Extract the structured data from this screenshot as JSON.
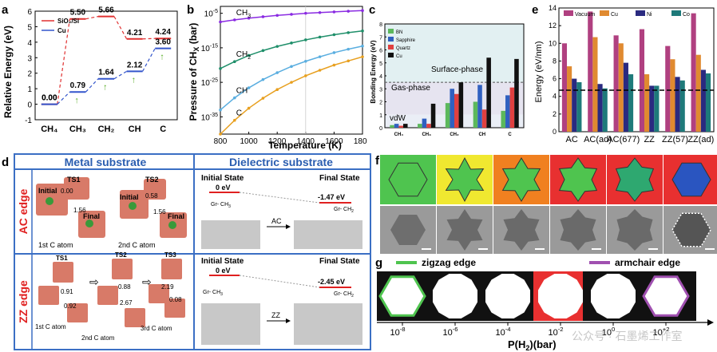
{
  "panel_labels": {
    "a": "a",
    "b": "b",
    "c": "c",
    "d": "d",
    "e": "e",
    "f": "f",
    "g": "g"
  },
  "chart_data": [
    {
      "id": "a",
      "type": "line",
      "title": "",
      "ylabel": "Relative Energy (eV)",
      "ylim": [
        -1,
        6
      ],
      "yticks": [
        "-1",
        "0",
        "1",
        "2",
        "3",
        "4",
        "5",
        "6"
      ],
      "categories": [
        "CH4",
        "CH3",
        "CH2",
        "CH",
        "C"
      ],
      "category_labels": [
        "CH₄",
        "CH₃",
        "CH₂",
        "CH",
        "C"
      ],
      "series": [
        {
          "name": "SiO2/Si",
          "legend": "SiO₂/Si",
          "color": "#e03030",
          "values": [
            0.0,
            5.5,
            5.66,
            4.21,
            4.24
          ],
          "labels": [
            "0.00",
            "5.50",
            "5.66",
            "4.21",
            "4.24"
          ]
        },
        {
          "name": "Cu",
          "legend": "Cu",
          "color": "#3355cc",
          "values": [
            0.0,
            0.79,
            1.64,
            2.12,
            3.6
          ],
          "labels": [
            "0.00",
            "0.79",
            "1.64",
            "2.12",
            "3.60"
          ]
        }
      ]
    },
    {
      "id": "b",
      "type": "line",
      "xlabel": "Temperature (K)",
      "ylabel": "Pressure of CH",
      "ylabel_sub": "X",
      "ylabel_tail": " (bar)",
      "xlim": [
        800,
        1800
      ],
      "xticks": [
        "800",
        "1000",
        "1200",
        "1400",
        "1600",
        "1800"
      ],
      "ytick_base": "10",
      "ytick_exps": [
        "-5",
        "-15",
        "-25",
        "-35"
      ],
      "ylim_log": [
        -40,
        -3
      ],
      "series": [
        {
          "name": "CH3",
          "label": "CH",
          "label_sub": "3",
          "color": "#8a2be2",
          "x": [
            800,
            900,
            1000,
            1100,
            1200,
            1300,
            1400,
            1500,
            1600,
            1700,
            1800
          ],
          "log_values": [
            -7.5,
            -6.9,
            -6.4,
            -6.0,
            -5.6,
            -5.3,
            -5.0,
            -4.8,
            -4.6,
            -4.4,
            -4.2
          ]
        },
        {
          "name": "CH2",
          "label": "CH",
          "label_sub": "2",
          "color": "#1f8f6a",
          "x": [
            800,
            900,
            1000,
            1100,
            1200,
            1300,
            1400,
            1500,
            1600,
            1700,
            1800
          ],
          "log_values": [
            -21,
            -19,
            -17.2,
            -15.8,
            -14.6,
            -13.6,
            -12.7,
            -11.9,
            -11.2,
            -10.6,
            -10.1
          ]
        },
        {
          "name": "CH",
          "label": "CH",
          "label_sub": "",
          "color": "#5aaee0",
          "x": [
            800,
            900,
            1000,
            1100,
            1200,
            1300,
            1400,
            1500,
            1600,
            1700,
            1800
          ],
          "log_values": [
            -33,
            -29.5,
            -26.6,
            -24.2,
            -22.2,
            -20.4,
            -18.9,
            -17.6,
            -16.4,
            -15.4,
            -14.5
          ]
        },
        {
          "name": "C",
          "label": "C",
          "label_sub": "",
          "color": "#e8a020",
          "x": [
            800,
            900,
            1000,
            1100,
            1200,
            1300,
            1400,
            1500,
            1600,
            1700,
            1800
          ],
          "log_values": [
            -40,
            -36,
            -32.5,
            -29.6,
            -27.1,
            -25,
            -23.1,
            -21.5,
            -20,
            -18.8,
            -17.6
          ]
        }
      ]
    },
    {
      "id": "c",
      "type": "bar",
      "ylabel": "Bonding Energy (eV)",
      "ylim": [
        0,
        8
      ],
      "yticks": [
        "0",
        "1",
        "2",
        "3",
        "4",
        "5",
        "6",
        "7",
        "8"
      ],
      "categories": [
        "CH4",
        "CH3",
        "CH2",
        "CH",
        "C"
      ],
      "category_labels": [
        "CH₄",
        "CH₃",
        "CH₂",
        "CH",
        "C"
      ],
      "region_labels": [
        "Surface-phase",
        "Gas-phase",
        "vdW"
      ],
      "thresholds": [
        3.5,
        1.0
      ],
      "series": [
        {
          "name": "BN",
          "color": "#5cb85c",
          "values": [
            0.2,
            0.3,
            1.9,
            2.0,
            1.3
          ]
        },
        {
          "name": "Sapphire",
          "color": "#3060c0",
          "values": [
            0.3,
            0.7,
            3.0,
            3.3,
            2.5
          ]
        },
        {
          "name": "Quartz",
          "color": "#e04040",
          "values": [
            0.15,
            0.3,
            2.6,
            1.4,
            3.1
          ]
        },
        {
          "name": "Cu",
          "color": "#111111",
          "values": [
            0.3,
            1.85,
            3.5,
            5.4,
            5.3
          ]
        }
      ]
    },
    {
      "id": "e",
      "type": "bar",
      "ylabel": "Energy (eV/nm)",
      "ylim": [
        0,
        14
      ],
      "yticks": [
        "0",
        "2",
        "4",
        "6",
        "8",
        "10",
        "12",
        "14"
      ],
      "categories": [
        "AC",
        "AC(ad)",
        "AC(677)",
        "ZZ",
        "ZZ(57)",
        "ZZ(ad)"
      ],
      "reference_line": 4.7,
      "series": [
        {
          "name": "Vacuum",
          "color": "#b04080",
          "values": [
            10.0,
            13.6,
            10.9,
            11.6,
            9.7,
            13.4
          ]
        },
        {
          "name": "Cu",
          "color": "#e08a30",
          "values": [
            7.4,
            10.7,
            10.0,
            6.5,
            8.2,
            8.7
          ]
        },
        {
          "name": "Ni",
          "color": "#2a2a80",
          "values": [
            6.0,
            5.4,
            7.8,
            5.2,
            6.2,
            7.0
          ]
        },
        {
          "name": "Co",
          "color": "#1e7a7a",
          "values": [
            5.6,
            4.9,
            6.5,
            5.2,
            5.8,
            6.6
          ]
        }
      ]
    }
  ],
  "panel_d": {
    "metal_header": "Metal substrate",
    "dielectric_header": "Dielectric substrate",
    "ac_edge": "AC edge",
    "zz_edge": "ZZ edge",
    "ac_metal": {
      "ts1": "TS1",
      "ts2": "TS2",
      "initial": "Initial",
      "final": "Final",
      "v1": "0.00",
      "v2": "1.56",
      "v3": "0.58",
      "v4": "1.56",
      "atom1": "1st C atom",
      "atom2": "2nd C atom",
      "atom1_sup": "st",
      "atom2_sup": "nd"
    },
    "zz_metal": {
      "ts1": "TS1",
      "ts2": "TS2",
      "ts3": "TS3",
      "v1": "0.91",
      "v2": "0.92",
      "v3": "0.88",
      "v4": "2.67",
      "v5": "2.19",
      "v6": "0.08",
      "atom1": "1st C atom",
      "atom2": "2nd C atom",
      "atom3": "3rd C atom"
    },
    "ac_diel": {
      "initial": "Initial State",
      "final": "Final State",
      "e0": "0 eV",
      "e1": "-1.47 eV",
      "gr1": "Gr- CH",
      "gr1_sub": "3",
      "gr2": "Gr- CH",
      "gr2_sub": "2",
      "arrow": "AC"
    },
    "zz_diel": {
      "initial": "Initial State",
      "final": "Final State",
      "e0": "0 eV",
      "e1": "-2.45 eV",
      "gr1": "Gr- CH",
      "gr1_sub": "3",
      "gr2": "Gr- CH",
      "gr2_sub": "2",
      "arrow": "ZZ"
    }
  },
  "panel_g": {
    "zigzag": "zigzag edge",
    "armchair": "armchair edge",
    "xlabel": "P(H",
    "xlabel_sub": "2",
    "xlabel_tail": ")(bar)",
    "tick_base": "10",
    "tick_exps": [
      "-8",
      "-6",
      "-4",
      "-2",
      "0",
      "+2"
    ],
    "colors": {
      "zigzag": "#4fc44f",
      "armchair": "#a050b0",
      "red": "#e83030"
    }
  },
  "watermark": "公众号 · 石墨烯工作室"
}
